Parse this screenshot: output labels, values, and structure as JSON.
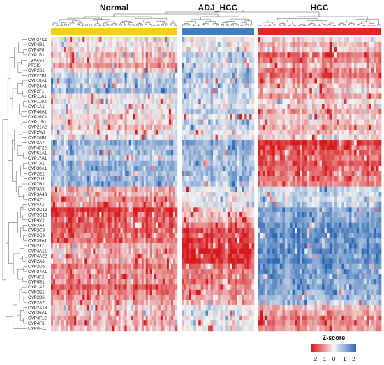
{
  "chart_data": {
    "type": "heatmap",
    "title": "",
    "xlabel": "",
    "ylabel": "",
    "groups": [
      {
        "name": "Normal",
        "color": "#f2cf1d",
        "columns": 60
      },
      {
        "name": "ADJ_HCC",
        "color": "#3f7fc1",
        "columns": 30
      },
      {
        "name": "HCC",
        "color": "#e0262a",
        "columns": 50
      }
    ],
    "genes": [
      "CYP27C1",
      "CYP4B1",
      "CYP4F8",
      "CYP1B1",
      "TBXAS1",
      "PTGIS",
      "CYP2S1",
      "CYP27B1",
      "CYP19A1",
      "CYP24A1",
      "CYP2F1",
      "CYP11A1",
      "CYP11B2",
      "CYP1A1",
      "CYP46A1",
      "CYP26C1",
      "CYP11B1",
      "CYP21A2",
      "CYP2W1",
      "CYP26B1",
      "CYP3A7",
      "CYP4F22",
      "CYP51A1",
      "CYP17A1",
      "CYP7A1",
      "CYP20A1",
      "CYP2E1",
      "CYP2U1",
      "CYP7B1",
      "CYP3A5",
      "CYP3A43",
      "CYP4Z1",
      "CYP4X1",
      "CYP2C19",
      "CYP2C18",
      "CYP4V2",
      "CYP3A4",
      "CYP2C8",
      "CYP2C9",
      "CYP39A1",
      "CYP2J2",
      "CYP4A11",
      "CYP4A22",
      "CYP2A6",
      "CYP2D6",
      "CYP27A1",
      "CYP4F2",
      "CYP8B1",
      "CYP1A2",
      "CYP2E1",
      "CYP2B6",
      "CYP2A7",
      "CYP2A13",
      "CYP26A1",
      "CYP4F12",
      "CYP4F3",
      "CYP4F11"
    ],
    "profiles": [
      [
        0,
        0,
        0.1
      ],
      [
        0,
        0,
        0.3
      ],
      [
        0.1,
        0,
        0.2
      ],
      [
        0.2,
        -0.3,
        0.6
      ],
      [
        0.2,
        -0.2,
        0.5
      ],
      [
        0.4,
        -0.1,
        0.3
      ],
      [
        0.1,
        -0.3,
        0.5
      ],
      [
        -0.2,
        -0.4,
        0.6
      ],
      [
        -0.3,
        -0.3,
        0.4
      ],
      [
        -0.2,
        -0.2,
        0.3
      ],
      [
        -0.4,
        -0.2,
        0.2
      ],
      [
        0,
        -0.2,
        0.4
      ],
      [
        0,
        -0.1,
        0.1
      ],
      [
        0,
        -0.1,
        0.2
      ],
      [
        0,
        -0.3,
        0.4
      ],
      [
        0.1,
        0,
        0.2
      ],
      [
        0.1,
        -0.2,
        0.2
      ],
      [
        0.2,
        -0.2,
        0.3
      ],
      [
        0,
        -0.1,
        0.2
      ],
      [
        0,
        -0.1,
        0.2
      ],
      [
        -0.4,
        -0.5,
        0.8
      ],
      [
        -0.3,
        -0.4,
        0.7
      ],
      [
        -0.3,
        -0.4,
        0.7
      ],
      [
        -0.2,
        -0.3,
        0.6
      ],
      [
        -0.4,
        -0.3,
        0.7
      ],
      [
        -0.4,
        -0.4,
        0.6
      ],
      [
        -0.3,
        -0.4,
        0.6
      ],
      [
        -0.4,
        -0.3,
        0.5
      ],
      [
        -0.4,
        -0.3,
        0.5
      ],
      [
        0.3,
        -0.1,
        -0.2
      ],
      [
        0.3,
        0,
        -0.2
      ],
      [
        0.4,
        0,
        -0.2
      ],
      [
        0.4,
        0,
        -0.3
      ],
      [
        0.8,
        0.2,
        -0.5
      ],
      [
        0.7,
        0.2,
        -0.5
      ],
      [
        0.6,
        0.3,
        -0.5
      ],
      [
        0.6,
        0.5,
        -0.6
      ],
      [
        0.6,
        0.7,
        -0.7
      ],
      [
        0.5,
        0.7,
        -0.7
      ],
      [
        0.5,
        0.8,
        -0.6
      ],
      [
        0.3,
        0.8,
        -0.6
      ],
      [
        0.3,
        0.9,
        -0.7
      ],
      [
        0.3,
        0.8,
        -0.6
      ],
      [
        0.3,
        0.8,
        -0.7
      ],
      [
        0.5,
        0.6,
        -0.6
      ],
      [
        0.4,
        0.5,
        -0.6
      ],
      [
        0.4,
        0.5,
        -0.6
      ],
      [
        0.4,
        0.5,
        -0.5
      ],
      [
        0.6,
        0.4,
        -0.5
      ],
      [
        0.5,
        0.4,
        -0.5
      ],
      [
        0.4,
        0.3,
        -0.4
      ],
      [
        0.3,
        0.3,
        -0.3
      ],
      [
        0.2,
        0,
        0.3
      ],
      [
        0.2,
        0,
        0.4
      ],
      [
        0.3,
        0,
        0.5
      ],
      [
        0.3,
        0,
        0.5
      ],
      [
        0.2,
        0,
        0.4
      ]
    ],
    "color_scale": {
      "title": "Z-score",
      "ticks": [
        "2",
        "1",
        "0",
        "−1",
        "−2"
      ],
      "high": "#d7191c",
      "mid": "#f4f4f4",
      "low": "#2c68b5"
    }
  }
}
